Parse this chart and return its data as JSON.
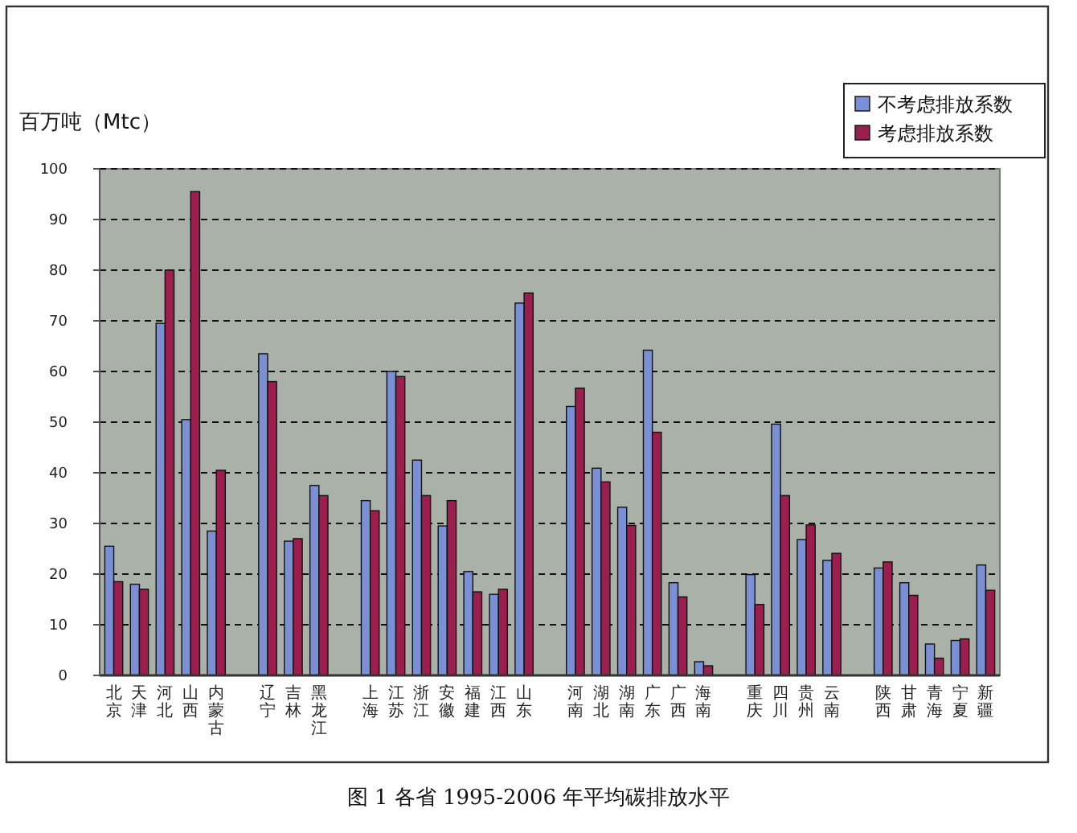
{
  "chart_data": {
    "type": "bar",
    "title": "图 1  各省 1995-2006 年平均碳排放水平",
    "ylabel": "百万吨（Mtc）",
    "categories": [
      "北京",
      "天津",
      "河北",
      "山西",
      "内蒙古",
      null,
      "辽宁",
      "吉林",
      "黑龙江",
      null,
      "上海",
      "江苏",
      "浙江",
      "安徽",
      "福建",
      "江西",
      "山东",
      null,
      "河南",
      "湖北",
      "湖南",
      "广东",
      "广西",
      "海南",
      null,
      "重庆",
      "四川",
      "贵州",
      "云南",
      null,
      "陕西",
      "甘肃",
      "青海",
      "宁夏",
      "新疆"
    ],
    "series": [
      {
        "name": "不考虑排放系数",
        "color": "#7b8fd4",
        "values": [
          25.5,
          18,
          69.5,
          50.5,
          28.5,
          null,
          63.5,
          26.5,
          37.5,
          null,
          34.5,
          60,
          42.5,
          29.5,
          20.5,
          16,
          73.5,
          null,
          53.1,
          40.9,
          33.2,
          64.2,
          18.3,
          2.7,
          null,
          19.9,
          49.6,
          26.8,
          22.7,
          null,
          21.2,
          18.3,
          6.2,
          6.9,
          21.8
        ]
      },
      {
        "name": "考虑排放系数",
        "color": "#9b1f4e",
        "values": [
          18.5,
          17,
          80,
          95.5,
          40.5,
          null,
          58,
          27,
          35.5,
          null,
          32.5,
          59,
          35.5,
          34.5,
          16.5,
          17,
          75.5,
          null,
          56.7,
          38.2,
          29.6,
          48,
          15.5,
          1.9,
          null,
          14,
          35.5,
          29.7,
          24.1,
          null,
          22.4,
          15.8,
          3.4,
          7.2,
          16.8
        ]
      }
    ],
    "ylim": [
      0,
      100
    ],
    "yticks": [
      0,
      10,
      20,
      30,
      40,
      50,
      60,
      70,
      80,
      90,
      100
    ],
    "grid": "y",
    "legend": "top right"
  }
}
